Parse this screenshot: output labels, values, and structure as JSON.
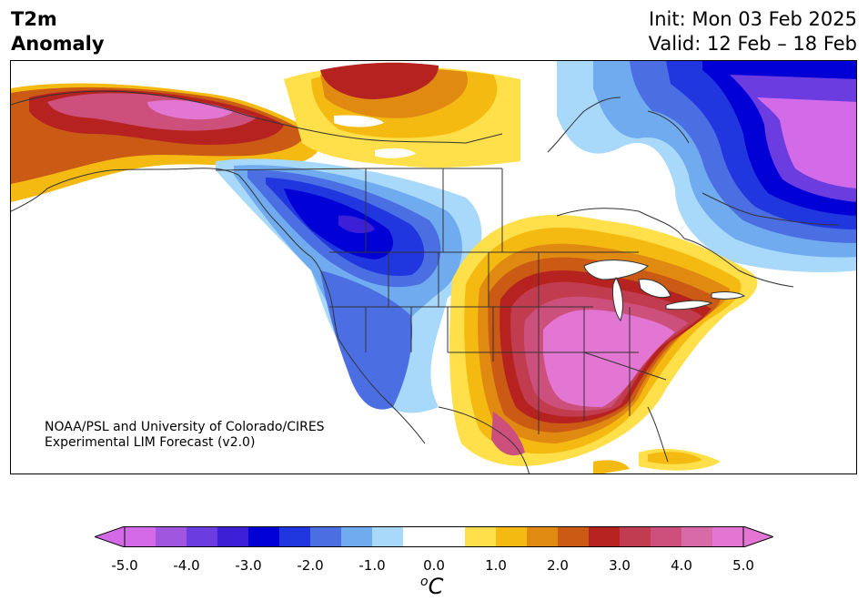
{
  "header": {
    "variable": "T2m",
    "variable_sub": "Anomaly",
    "init_line": "Init: Mon 03 Feb 2025",
    "valid_line": "Valid: 12 Feb – 18 Feb"
  },
  "credit": {
    "line1": "NOAA/PSL and University of Colorado/CIRES",
    "line2": "Experimental LIM Forecast (v2.0)"
  },
  "colorbar": {
    "unit_prefix": "o",
    "unit_main": "C",
    "ticks": [
      "-5.0",
      "-4.0",
      "-3.0",
      "-2.0",
      "-1.0",
      "0.0",
      "1.0",
      "2.0",
      "3.0",
      "4.0",
      "5.0"
    ],
    "colors": [
      "#d36be8",
      "#a156e0",
      "#6b3ce0",
      "#3c1fd6",
      "#0000d6",
      "#2037e0",
      "#4b6ee3",
      "#70aaef",
      "#a8d9fb",
      "#ffffff",
      "#ffffff",
      "#ffe04a",
      "#f5ba12",
      "#e08a12",
      "#cb5a15",
      "#b5221f",
      "#c23c50",
      "#cd4f7c",
      "#d86aa8",
      "#e276d2"
    ]
  }
}
